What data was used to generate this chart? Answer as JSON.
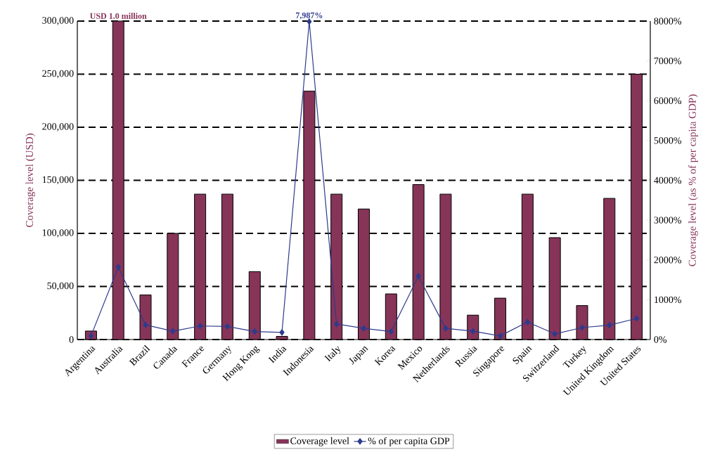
{
  "chart_data": {
    "type": "bar",
    "ylabel": "Coverage level (USD)",
    "y2label": "Coverage level (as % of per capita GDP)",
    "categories": [
      "Argentina",
      "Australia",
      "Brazil",
      "Canada",
      "France",
      "Germany",
      "Hong Kong",
      "India",
      "Indonesia",
      "Italy",
      "Japan",
      "Korea",
      "Mexico",
      "Netherlands",
      "Russia",
      "Singapore",
      "Spain",
      "Switzerland",
      "Turkey",
      "United Kingdom",
      "United States"
    ],
    "series": [
      {
        "name": "Coverage level",
        "color": "#873459",
        "values": [
          8000,
          300000,
          42000,
          100000,
          137000,
          137000,
          64000,
          3000,
          234000,
          137000,
          123000,
          43000,
          146000,
          137000,
          23000,
          39000,
          137000,
          96000,
          32000,
          133000,
          250000
        ],
        "value_labels": [
          null,
          "USD 1.0 million",
          null,
          null,
          null,
          null,
          null,
          null,
          null,
          null,
          null,
          null,
          null,
          null,
          null,
          null,
          null,
          null,
          null,
          null,
          null
        ]
      },
      {
        "name": "% of per capita GDP",
        "type": "line",
        "axis": "y2",
        "color": "#2e3b8c",
        "marker": "diamond",
        "values": [
          90,
          1820,
          370,
          210,
          340,
          330,
          200,
          180,
          7987,
          390,
          280,
          200,
          1590,
          280,
          210,
          90,
          440,
          140,
          300,
          360,
          530
        ],
        "value_labels": [
          null,
          null,
          null,
          null,
          null,
          null,
          null,
          null,
          "7,987%",
          null,
          null,
          null,
          null,
          null,
          null,
          null,
          null,
          null,
          null,
          null,
          null
        ]
      }
    ],
    "ylim": [
      0,
      300000
    ],
    "yticks": [
      {
        "value": 0,
        "label": "0"
      },
      {
        "value": 50000,
        "label": "50,000"
      },
      {
        "value": 100000,
        "label": "100,000"
      },
      {
        "value": 150000,
        "label": "150,000"
      },
      {
        "value": 200000,
        "label": "200,000"
      },
      {
        "value": 250000,
        "label": "250,000"
      },
      {
        "value": 300000,
        "label": "300,000"
      }
    ],
    "y2lim": [
      0,
      8000
    ],
    "y2ticks": [
      {
        "value": 0,
        "label": "0%"
      },
      {
        "value": 1000,
        "label": "1000%"
      },
      {
        "value": 2000,
        "label": "2000%"
      },
      {
        "value": 3000,
        "label": "3000%"
      },
      {
        "value": 4000,
        "label": "4000%"
      },
      {
        "value": 5000,
        "label": "5000%"
      },
      {
        "value": 6000,
        "label": "6000%"
      },
      {
        "value": 7000,
        "label": "7000%"
      },
      {
        "value": 8000,
        "label": "8000%"
      }
    ],
    "grid": "y",
    "legend": "bottom"
  }
}
